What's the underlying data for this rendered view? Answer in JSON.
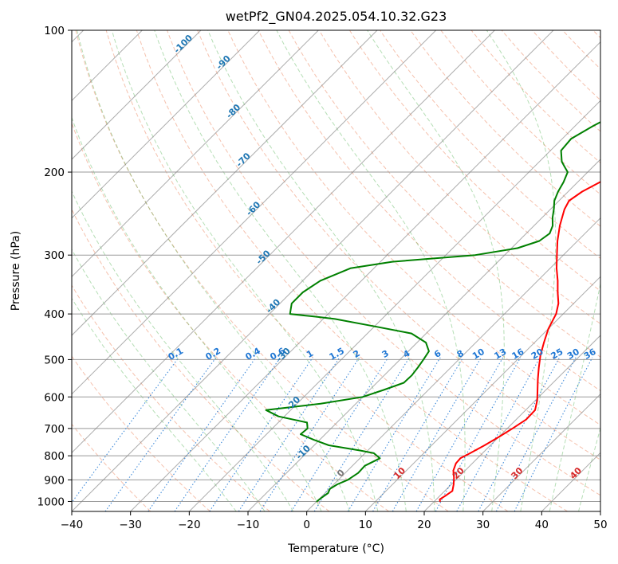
{
  "chart_data": {
    "type": "line",
    "subtype": "skew-t log-p diagram",
    "title": "wetPf2_GN04.2025.054.10.32.G23",
    "xlabel": "Temperature (°C)",
    "ylabel": "Pressure (hPa)",
    "xlim": [
      -40,
      50
    ],
    "ylim": [
      1050,
      100
    ],
    "y_scale": "log",
    "x_ticks": [
      "−40",
      "−30",
      "−20",
      "−10",
      "0",
      "10",
      "20",
      "30",
      "40",
      "50"
    ],
    "y_ticks": [
      "100",
      "200",
      "300",
      "400",
      "500",
      "600",
      "700",
      "800",
      "900",
      "1000"
    ],
    "grid": true,
    "legend": "none",
    "colors": {
      "temperature": "#ff0000",
      "dewpoint": "#008000",
      "dry_adiabats": "#e8754a",
      "moist_adiabats": "#2ca02c",
      "mixing_ratio": "#1f77d4",
      "isotherms": "#808080",
      "isotherm_labels_cold": "#1f77b4",
      "isotherm_labels_warm": "#d62728"
    },
    "series": [
      {
        "key": "temperature",
        "points": [
          [
            1000,
            21.0
          ],
          [
            990,
            20.6
          ],
          [
            970,
            21.0
          ],
          [
            950,
            21.3
          ],
          [
            920,
            20.4
          ],
          [
            890,
            19.3
          ],
          [
            860,
            18.0
          ],
          [
            830,
            17.2
          ],
          [
            810,
            17.1
          ],
          [
            790,
            17.9
          ],
          [
            760,
            19.0
          ],
          [
            730,
            20.0
          ],
          [
            700,
            20.9
          ],
          [
            670,
            21.7
          ],
          [
            640,
            21.6
          ],
          [
            610,
            20.3
          ],
          [
            580,
            18.6
          ],
          [
            550,
            16.8
          ],
          [
            520,
            15.0
          ],
          [
            490,
            13.2
          ],
          [
            460,
            11.6
          ],
          [
            430,
            10.0
          ],
          [
            400,
            8.8
          ],
          [
            380,
            7.4
          ],
          [
            360,
            5.4
          ],
          [
            340,
            3.4
          ],
          [
            320,
            1.1
          ],
          [
            300,
            -1.1
          ],
          [
            280,
            -3.4
          ],
          [
            260,
            -5.6
          ],
          [
            240,
            -7.6
          ],
          [
            230,
            -8.3
          ],
          [
            220,
            -7.6
          ],
          [
            210,
            -6.2
          ],
          [
            200,
            -4.5
          ],
          [
            190,
            -2.8
          ],
          [
            180,
            -1.5
          ],
          [
            170,
            -0.8
          ],
          [
            160,
            -0.9
          ],
          [
            150,
            -1.4
          ],
          [
            140,
            -2.3
          ],
          [
            130,
            -3.8
          ],
          [
            120,
            -5.2
          ],
          [
            110,
            -5.9
          ],
          [
            100,
            -6.7
          ]
        ]
      },
      {
        "key": "dewpoint",
        "points": [
          [
            1000,
            0.0
          ],
          [
            980,
            0.2
          ],
          [
            960,
            0.5
          ],
          [
            940,
            0.1
          ],
          [
            920,
            0.6
          ],
          [
            900,
            1.6
          ],
          [
            870,
            2.2
          ],
          [
            840,
            2.1
          ],
          [
            810,
            3.4
          ],
          [
            790,
            1.5
          ],
          [
            780,
            -1.2
          ],
          [
            760,
            -7.5
          ],
          [
            740,
            -11.0
          ],
          [
            720,
            -14.2
          ],
          [
            700,
            -14.0
          ],
          [
            680,
            -15.1
          ],
          [
            660,
            -21.0
          ],
          [
            640,
            -24.2
          ],
          [
            620,
            -16.0
          ],
          [
            600,
            -10.0
          ],
          [
            580,
            -7.6
          ],
          [
            560,
            -5.4
          ],
          [
            540,
            -5.3
          ],
          [
            520,
            -5.6
          ],
          [
            500,
            -6.0
          ],
          [
            480,
            -6.5
          ],
          [
            460,
            -8.5
          ],
          [
            440,
            -12.5
          ],
          [
            425,
            -20.0
          ],
          [
            410,
            -28.0
          ],
          [
            405,
            -32.0
          ],
          [
            400,
            -36.5
          ],
          [
            380,
            -38.0
          ],
          [
            360,
            -38.0
          ],
          [
            340,
            -37.0
          ],
          [
            320,
            -34.0
          ],
          [
            310,
            -28.0
          ],
          [
            300,
            -15.0
          ],
          [
            290,
            -9.0
          ],
          [
            280,
            -6.5
          ],
          [
            270,
            -6.0
          ],
          [
            260,
            -6.8
          ],
          [
            250,
            -8.2
          ],
          [
            240,
            -9.4
          ],
          [
            230,
            -10.8
          ],
          [
            220,
            -11.7
          ],
          [
            210,
            -12.4
          ],
          [
            200,
            -13.4
          ],
          [
            195,
            -14.8
          ],
          [
            190,
            -16.2
          ],
          [
            180,
            -18.2
          ],
          [
            170,
            -18.5
          ],
          [
            160,
            -17.0
          ],
          [
            150,
            -15.0
          ],
          [
            140,
            -13.2
          ],
          [
            130,
            -11.0
          ],
          [
            120,
            -8.2
          ],
          [
            110,
            -5.8
          ],
          [
            100,
            -3.8
          ]
        ]
      }
    ],
    "isotherm_labels": [
      "-100",
      "-90",
      "-80",
      "-70",
      "-60",
      "-50",
      "-40",
      "-30",
      "-20",
      "-10",
      "0",
      "10",
      "20",
      "30",
      "40"
    ],
    "mixing_ratio_labels": [
      "0.1",
      "0.2",
      "0.4",
      "0.6",
      "1",
      "1.5",
      "2",
      "3",
      "4",
      "6",
      "8",
      "10",
      "13",
      "16",
      "20",
      "25",
      "30",
      "36"
    ]
  }
}
